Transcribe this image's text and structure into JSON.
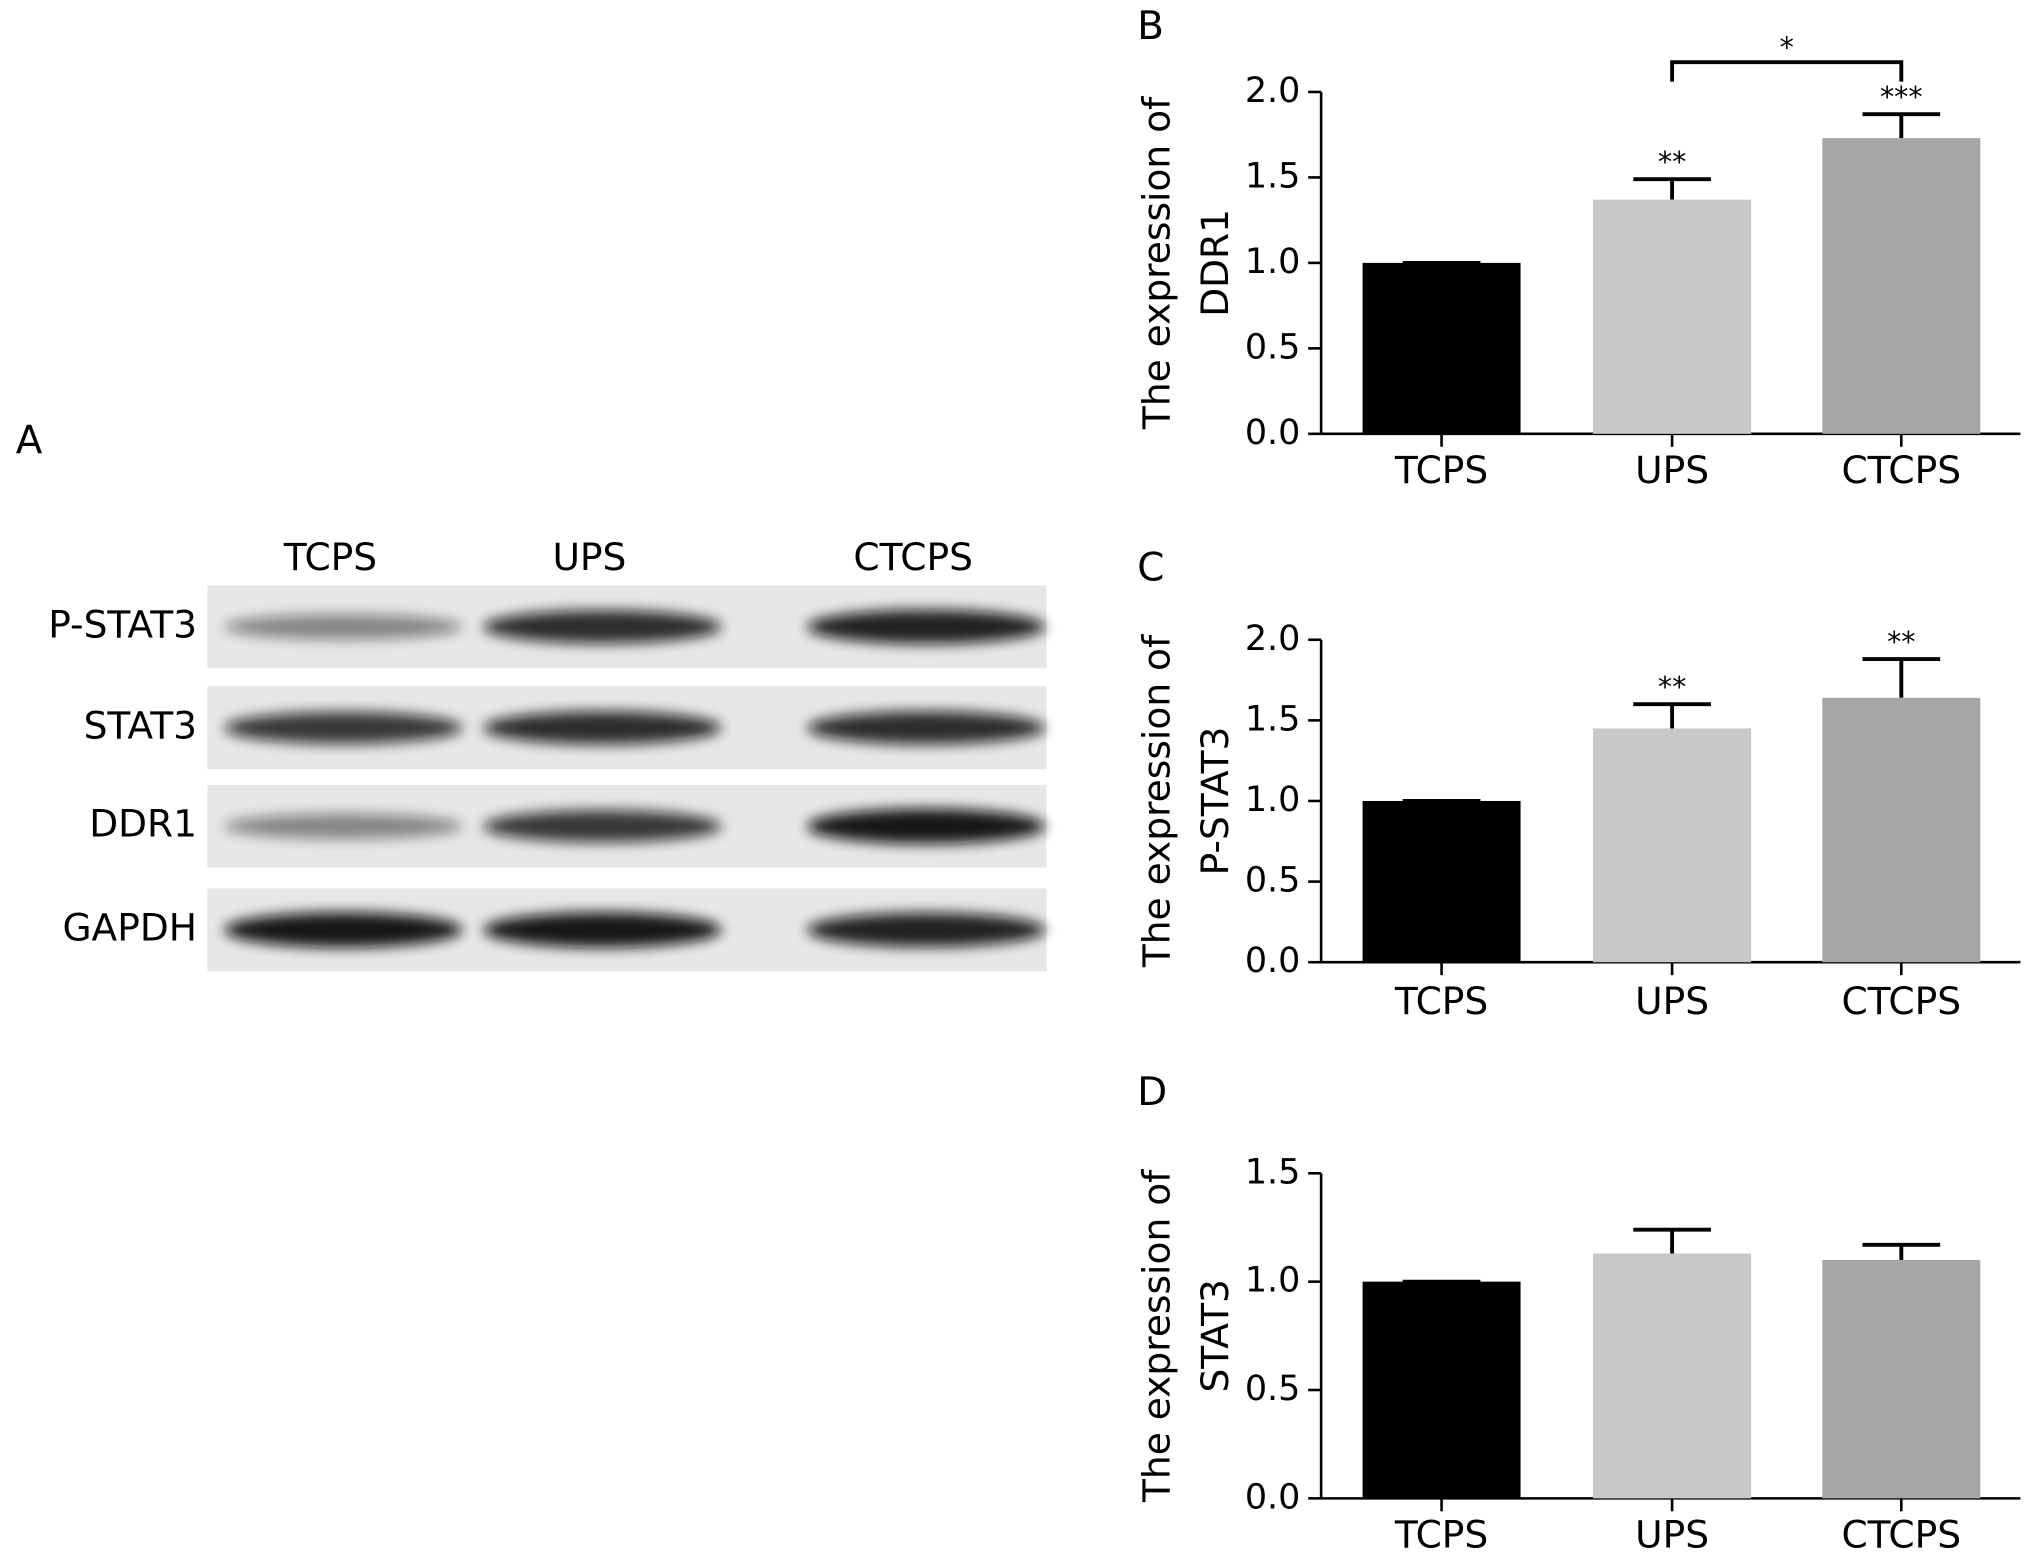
{
  "blot": {
    "panel_label": "A",
    "columns": [
      "TCPS",
      "UPS",
      "CTCPS"
    ],
    "rows": [
      "P-STAT3",
      "STAT3",
      "DDR1",
      "GAPDH"
    ]
  },
  "chart_data": [
    {
      "type": "bar",
      "panel_label": "B",
      "ylabel": [
        "The expression of",
        "DDR1"
      ],
      "categories": [
        "TCPS",
        "UPS",
        "CTCPS"
      ],
      "values": [
        1.0,
        1.37,
        1.73
      ],
      "errors": [
        0,
        0.12,
        0.14
      ],
      "colors": [
        "#000000",
        "#c8c8c8",
        "#a6a6a6"
      ],
      "value_annotations": [
        null,
        "**",
        "***"
      ],
      "bracket_label": "*",
      "ylim": [
        0,
        2
      ],
      "yticks": [
        {
          "value": 0,
          "label": "0.0"
        },
        0.5,
        {
          "value": 1,
          "label": "1.0"
        },
        1.5,
        {
          "value": 2,
          "label": "2.0"
        }
      ]
    },
    {
      "type": "bar",
      "panel_label": "C",
      "ylabel": [
        "The expression of",
        "P-STAT3"
      ],
      "categories": [
        "TCPS",
        "UPS",
        "CTCPS"
      ],
      "values": [
        1.0,
        1.45,
        1.64
      ],
      "errors": [
        0,
        0.15,
        0.24
      ],
      "colors": [
        "#000000",
        "#c8c8c8",
        "#a6a6a6"
      ],
      "value_annotations": [
        null,
        "**",
        "**"
      ],
      "ylim": [
        0,
        2
      ],
      "yticks": [
        {
          "value": 0,
          "label": "0.0"
        },
        0.5,
        {
          "value": 1,
          "label": "1.0"
        },
        1.5,
        {
          "value": 2,
          "label": "2.0"
        }
      ]
    },
    {
      "type": "bar",
      "panel_label": "D",
      "ylabel": [
        "The expression of",
        "STAT3"
      ],
      "categories": [
        "TCPS",
        "UPS",
        "CTCPS"
      ],
      "values": [
        1.0,
        1.13,
        1.1
      ],
      "errors": [
        0,
        0.11,
        0.07
      ],
      "colors": [
        "#000000",
        "#c8c8c8",
        "#a6a6a6"
      ],
      "ylim": [
        0,
        1.5
      ],
      "yticks": [
        {
          "value": 0,
          "label": "0.0"
        },
        0.5,
        {
          "value": 1,
          "label": "1.0"
        },
        1.5
      ]
    }
  ]
}
